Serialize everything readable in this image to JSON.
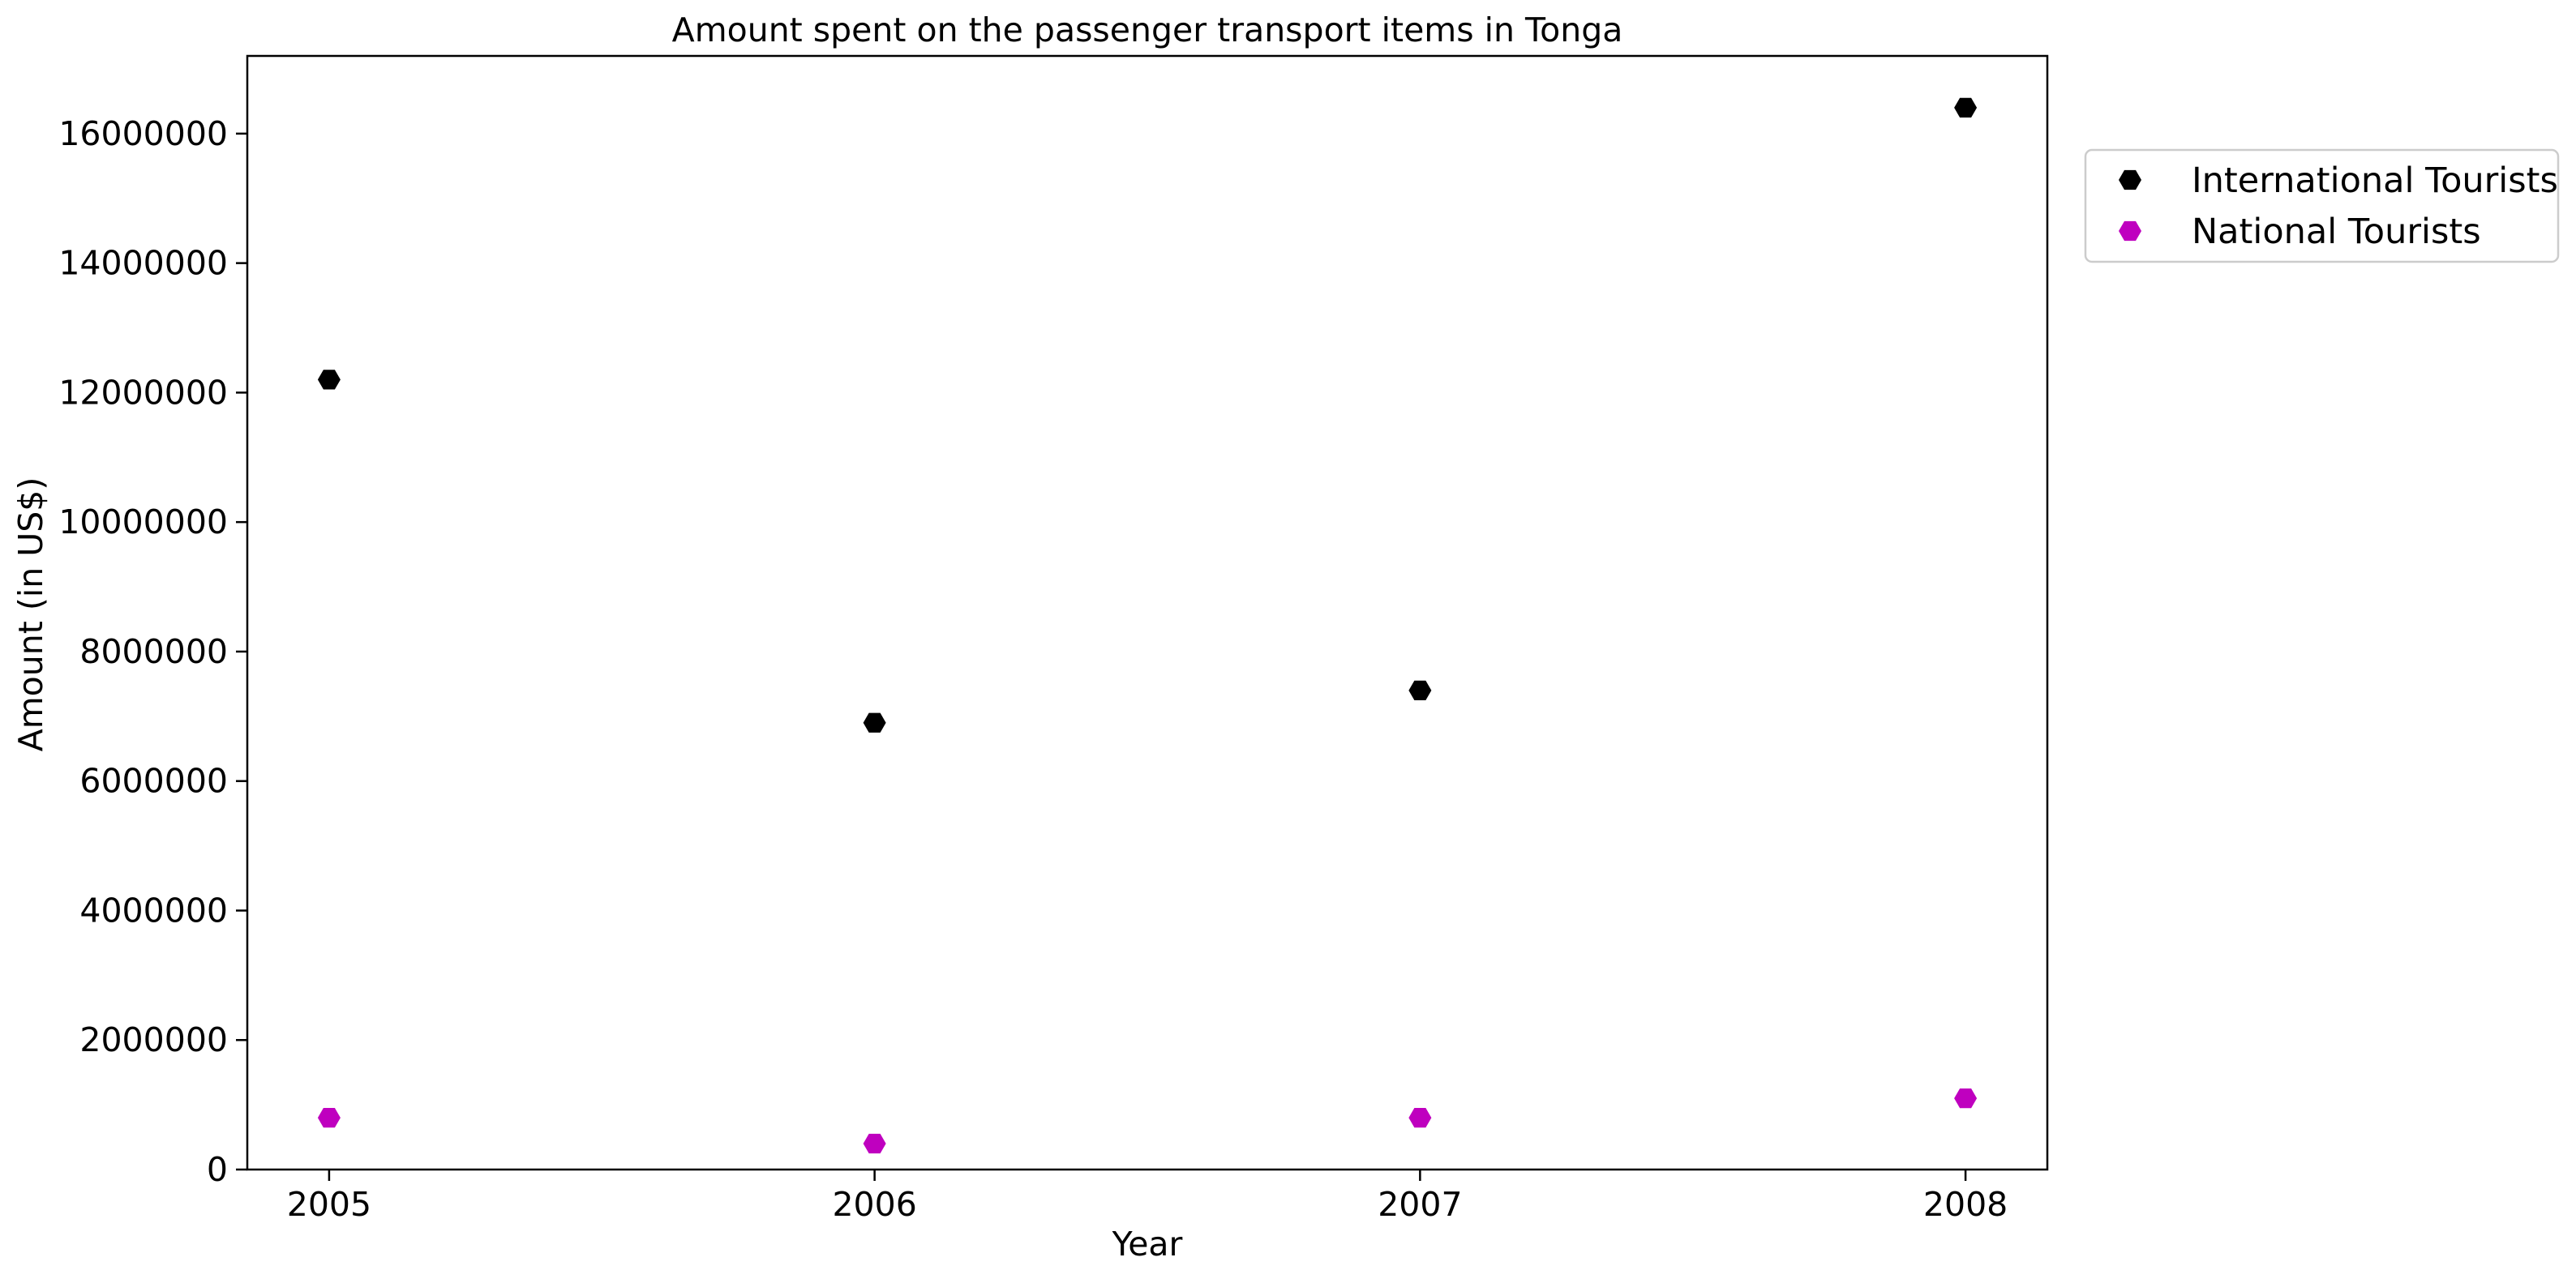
{
  "chart_data": {
    "type": "scatter",
    "title": "Amount spent on the passenger transport items in Tonga",
    "xlabel": "Year",
    "ylabel": "Amount (in US$)",
    "x": [
      2005,
      2006,
      2007,
      2008
    ],
    "xlim": [
      2004.85,
      2008.15
    ],
    "ylim": [
      0,
      17200000
    ],
    "x_ticks": [
      "2005",
      "2006",
      "2007",
      "2008"
    ],
    "y_ticks": [
      0,
      2000000,
      4000000,
      6000000,
      8000000,
      10000000,
      12000000,
      14000000,
      16000000
    ],
    "y_tick_labels": [
      "0",
      "2000000",
      "4000000",
      "6000000",
      "8000000",
      "10000000",
      "12000000",
      "14000000",
      "16000000"
    ],
    "grid": false,
    "legend_position": "upper-right-outside",
    "marker": "hexagon",
    "series": [
      {
        "name": "International Tourists",
        "color": "#000000",
        "values": [
          12200000,
          6900000,
          7400000,
          16400000
        ]
      },
      {
        "name": "National Tourists",
        "color": "#bf00bf",
        "values": [
          800000,
          400000,
          800000,
          1100000
        ]
      }
    ]
  }
}
